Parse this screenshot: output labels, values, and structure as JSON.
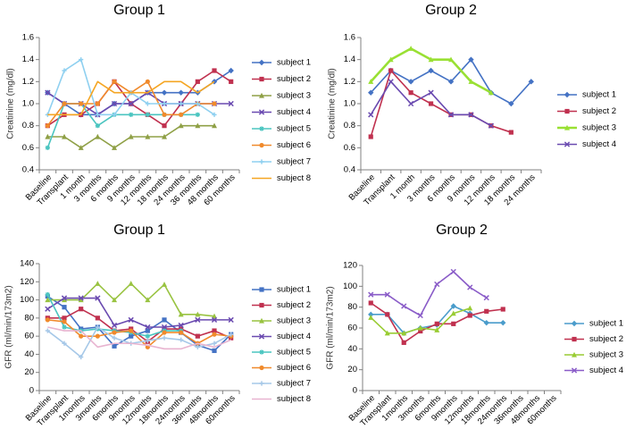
{
  "chart_data": [
    {
      "type": "line",
      "title": "Group 1",
      "ylabel": "Creatinine (mg/dl)",
      "xlabel": "",
      "ylim": [
        0.4,
        1.6
      ],
      "yticks": [
        "0.4",
        "0.6",
        "0.8",
        "1.0",
        "1.2",
        "1.4",
        "1.6"
      ],
      "grid": false,
      "legend": "right",
      "categories": [
        "Baseline",
        "Transplant",
        "1 month",
        "3 months",
        "6 months",
        "9 months",
        "12 months",
        "18 months",
        "24 months",
        "36 months",
        "48 months",
        "60 months"
      ],
      "series": [
        {
          "name": "subject 1",
          "color": "#4472C4",
          "marker": "diamond",
          "values": [
            1.1,
            1.0,
            0.9,
            0.9,
            1.0,
            1.0,
            1.1,
            1.1,
            1.1,
            1.1,
            1.2,
            1.3
          ]
        },
        {
          "name": "subject 2",
          "color": "#C0314F",
          "marker": "square",
          "values": [
            0.8,
            0.9,
            0.9,
            1.0,
            1.2,
            1.0,
            0.9,
            0.8,
            1.0,
            1.2,
            1.3,
            1.2
          ]
        },
        {
          "name": "subject 3",
          "color": "#8FA046",
          "marker": "triangle",
          "values": [
            0.7,
            0.7,
            0.6,
            0.7,
            0.6,
            0.7,
            0.7,
            0.7,
            0.8,
            0.8,
            0.8,
            null
          ]
        },
        {
          "name": "subject 4",
          "color": "#6A4AB0",
          "marker": "x",
          "values": [
            1.1,
            1.0,
            1.0,
            0.9,
            1.0,
            1.0,
            1.1,
            1.0,
            1.0,
            1.0,
            1.0,
            1.0
          ]
        },
        {
          "name": "subject 5",
          "color": "#4BC5C0",
          "marker": "star",
          "values": [
            0.6,
            1.0,
            1.0,
            0.8,
            0.9,
            0.9,
            0.9,
            0.9,
            0.9,
            0.9,
            null,
            null
          ]
        },
        {
          "name": "subject 6",
          "color": "#F08A2C",
          "marker": "circle",
          "values": [
            0.8,
            1.0,
            1.0,
            1.0,
            1.2,
            1.1,
            1.2,
            0.9,
            0.9,
            1.0,
            1.0,
            null
          ]
        },
        {
          "name": "subject 7",
          "color": "#8FD0F0",
          "marker": "plus",
          "values": [
            0.9,
            1.3,
            1.4,
            0.9,
            0.9,
            1.1,
            1.0,
            1.0,
            1.0,
            1.0,
            0.9,
            null
          ]
        },
        {
          "name": "subject  8",
          "color": "#F5A623",
          "marker": "none",
          "values": [
            0.9,
            0.9,
            0.9,
            1.2,
            1.1,
            1.1,
            1.1,
            1.2,
            1.2,
            1.1,
            1.2,
            null
          ]
        }
      ]
    },
    {
      "type": "line",
      "title": "Group 2",
      "ylabel": "Creatinine (mg/dl)",
      "xlabel": "",
      "ylim": [
        0.4,
        1.6
      ],
      "yticks": [
        "0.4",
        "0.6",
        "0.8",
        "1.0",
        "1.2",
        "1.4",
        "1.6"
      ],
      "grid": false,
      "legend": "right",
      "categories": [
        "Baseline",
        "Transplant",
        "1 month",
        "3 months",
        "6 months",
        "9 months",
        "12 months",
        "18 months",
        "24 months"
      ],
      "series": [
        {
          "name": "subject 1",
          "color": "#4472C4",
          "marker": "diamond",
          "values": [
            1.1,
            1.3,
            1.2,
            1.3,
            1.2,
            1.4,
            1.1,
            1.0,
            1.2
          ]
        },
        {
          "name": "subject 2",
          "color": "#C0314F",
          "marker": "square",
          "values": [
            0.7,
            1.3,
            1.1,
            1.0,
            0.9,
            0.9,
            0.8,
            0.74,
            null
          ]
        },
        {
          "name": "subject 3",
          "color": "#99E033",
          "marker": "triangle",
          "values": [
            1.2,
            1.4,
            1.5,
            1.4,
            1.4,
            1.2,
            1.1,
            null,
            null
          ]
        },
        {
          "name": "subject 4",
          "color": "#6A4AB0",
          "marker": "x",
          "values": [
            0.9,
            1.2,
            1.0,
            1.1,
            0.9,
            0.9,
            0.8,
            null,
            null
          ]
        }
      ]
    },
    {
      "type": "line",
      "title": "Group 1",
      "ylabel": "GFR (ml/min/173m2)",
      "xlabel": "",
      "ylim": [
        0,
        140
      ],
      "yticks": [
        "0",
        "20",
        "40",
        "60",
        "80",
        "100",
        "120",
        "140"
      ],
      "grid": false,
      "legend": "right",
      "categories": [
        "Baseline",
        "Transplant",
        "1months",
        "3months",
        "6months",
        "9months",
        "12months",
        "18months",
        "24months",
        "36months",
        "48months",
        "60months"
      ],
      "series": [
        {
          "name": "subject 1",
          "color": "#4472C4",
          "marker": "square",
          "values": [
            104,
            92,
            68,
            70,
            49,
            60,
            66,
            78,
            64,
            50,
            44,
            62
          ]
        },
        {
          "name": "subject 2",
          "color": "#C0314F",
          "marker": "square",
          "values": [
            80,
            80,
            90,
            80,
            66,
            68,
            54,
            68,
            68,
            60,
            66,
            58
          ]
        },
        {
          "name": "subject 3",
          "color": "#99C341",
          "marker": "triangle",
          "values": [
            100,
            100,
            100,
            118,
            100,
            118,
            100,
            117,
            84,
            84,
            82,
            null
          ]
        },
        {
          "name": "subject 4",
          "color": "#6A4AB0",
          "marker": "x",
          "values": [
            90,
            102,
            102,
            102,
            72,
            78,
            70,
            70,
            72,
            78,
            78,
            78
          ]
        },
        {
          "name": "subject 5",
          "color": "#4BC5C0",
          "marker": "star",
          "values": [
            106,
            70,
            66,
            68,
            66,
            64,
            60,
            66,
            66,
            null,
            null,
            null
          ]
        },
        {
          "name": "subject 6",
          "color": "#F08A2C",
          "marker": "circle",
          "values": [
            78,
            76,
            60,
            60,
            64,
            66,
            48,
            64,
            64,
            52,
            62,
            60
          ]
        },
        {
          "name": "subject 7",
          "color": "#A6C8E8",
          "marker": "plus",
          "values": [
            66,
            52,
            37,
            70,
            58,
            52,
            55,
            58,
            56,
            48,
            52,
            62
          ]
        },
        {
          "name": "subject 8",
          "color": "#E8B4D0",
          "marker": "none",
          "values": [
            70,
            66,
            66,
            48,
            52,
            52,
            50,
            46,
            46,
            52,
            48,
            56
          ]
        }
      ]
    },
    {
      "type": "line",
      "title": "Group 2",
      "ylabel": "GFR (ml/min/173m2)",
      "xlabel": "",
      "ylim": [
        0,
        120
      ],
      "yticks": [
        "0",
        "20",
        "40",
        "60",
        "80",
        "100",
        "120"
      ],
      "grid": false,
      "legend": "right",
      "categories": [
        "Baseline",
        "Transplant",
        "1months",
        "3months",
        "6months",
        "9months",
        "12months",
        "18months",
        "24months",
        "36months",
        "48months",
        "60months"
      ],
      "series": [
        {
          "name": "subject 1",
          "color": "#4A9CCB",
          "marker": "diamond",
          "values": [
            73,
            73,
            55,
            60,
            63,
            81,
            74,
            65,
            65,
            null,
            null,
            null
          ]
        },
        {
          "name": "subject 2",
          "color": "#C0314F",
          "marker": "square",
          "values": [
            84,
            73,
            46,
            57,
            64,
            64,
            72,
            76,
            78,
            null,
            null,
            null
          ]
        },
        {
          "name": "subject 3",
          "color": "#99CC33",
          "marker": "triangle",
          "values": [
            70,
            55,
            55,
            60,
            58,
            74,
            79,
            null,
            null,
            null,
            null,
            null
          ]
        },
        {
          "name": "subject 4",
          "color": "#8A5CC8",
          "marker": "x",
          "values": [
            92,
            92,
            81,
            72,
            102,
            114,
            99,
            89,
            null,
            null,
            null,
            null
          ]
        }
      ]
    }
  ]
}
